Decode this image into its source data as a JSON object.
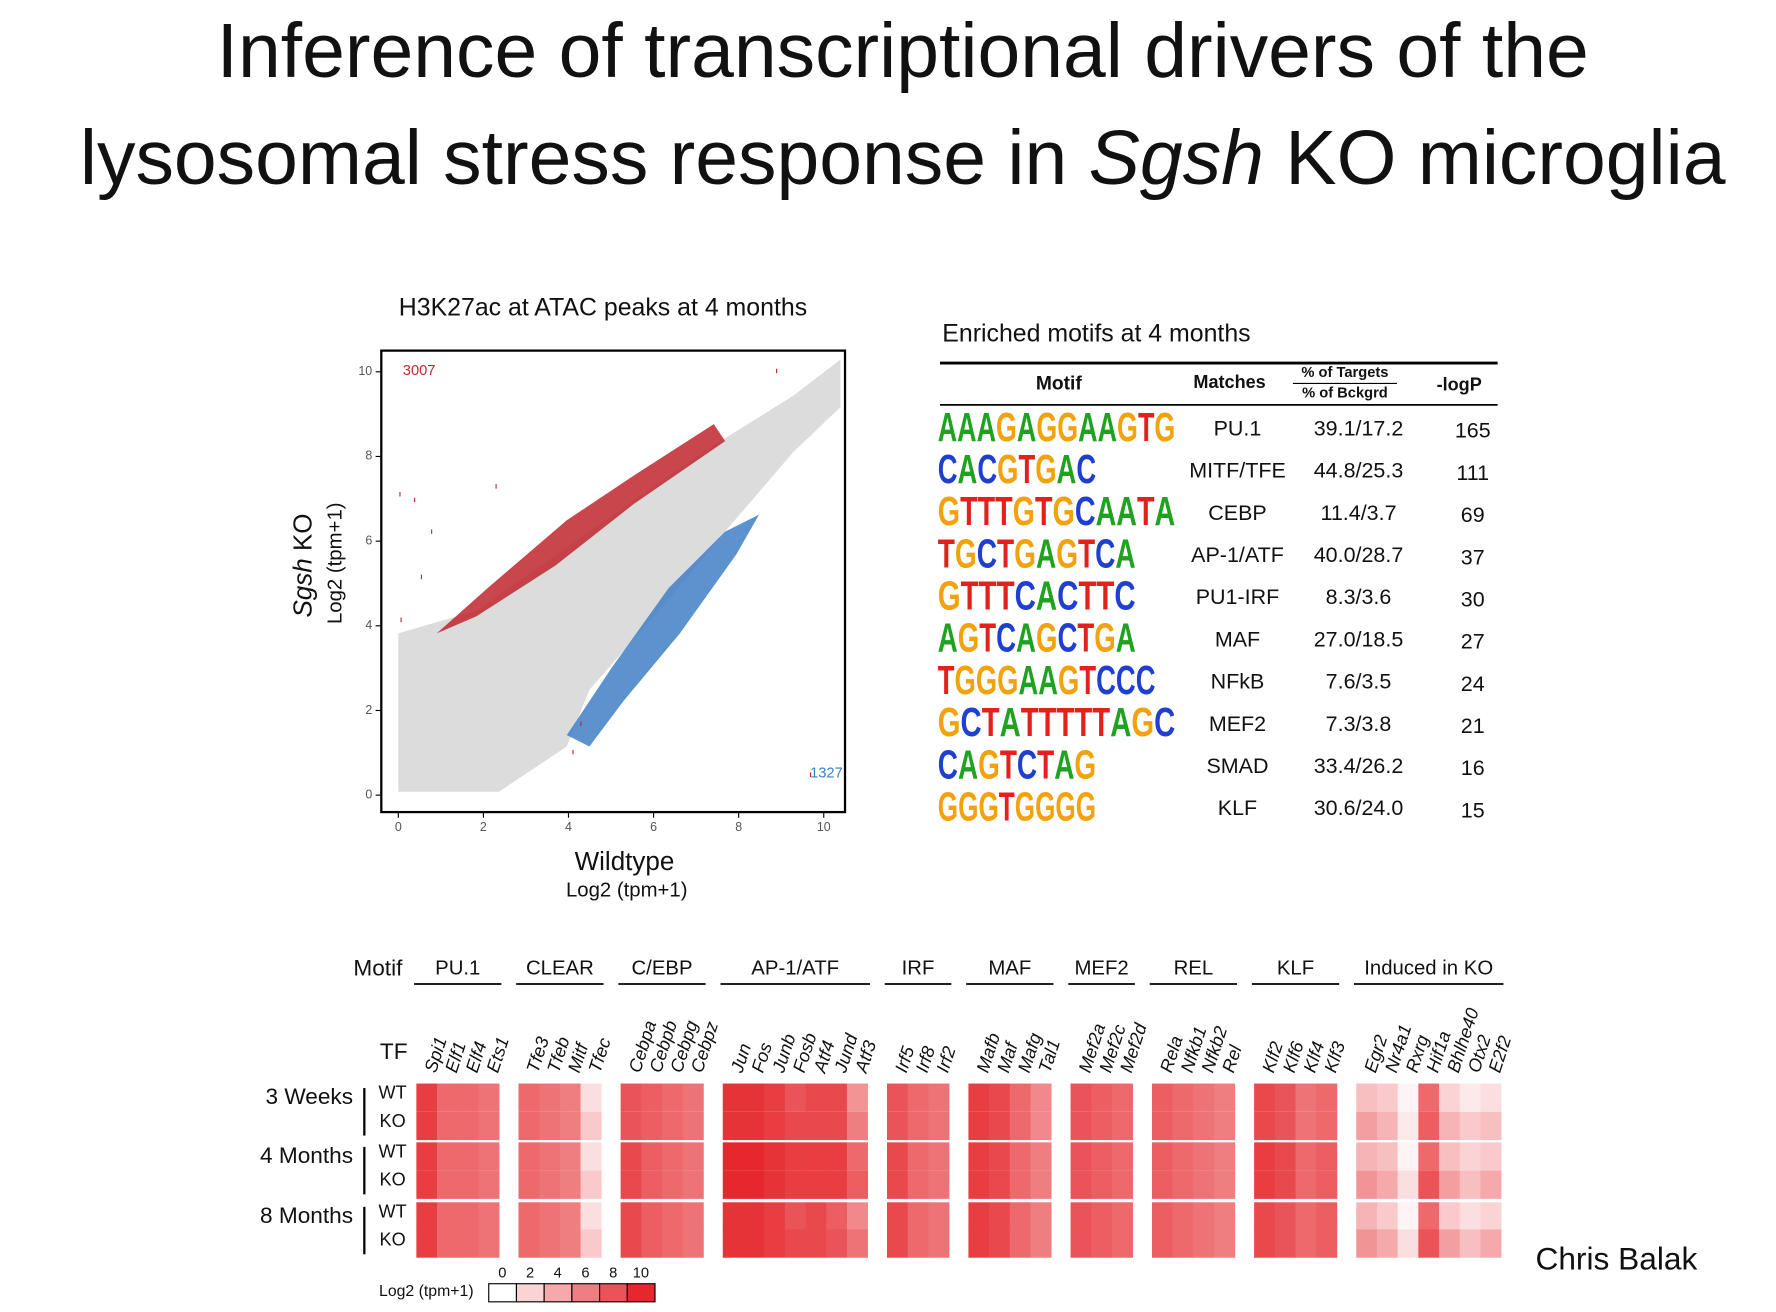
{
  "title": {
    "line1": "Inference of transcriptional drivers of the",
    "line2_pre": "lysosomal stress response in ",
    "line2_italic": "Sgsh",
    "line2_post": " KO microglia"
  },
  "scatter": {
    "title": "H3K27ac at ATAC peaks at 4 months",
    "x_label": "Wildtype",
    "x_unit": "Log2 (tpm+1)",
    "y_label_italic": "Sgsh",
    "y_label_rest": " KO",
    "y_unit": "Log2 (tpm+1)",
    "xlim": [
      -0.4,
      10.5
    ],
    "ylim": [
      -0.4,
      10.5
    ],
    "xticks": [
      0,
      2,
      4,
      6,
      8,
      10
    ],
    "yticks": [
      0,
      2,
      4,
      6,
      8,
      10
    ],
    "up_count": "3007",
    "down_count": "1327"
  },
  "table": {
    "title": "Enriched motifs at 4 months",
    "headers": {
      "motif": "Motif",
      "matches": "Matches",
      "targets": "% of Targets",
      "background": "% of Bckgrd",
      "logp": "-logP"
    },
    "rows": [
      [
        "AAAGAGGAAGTG",
        "PU.1",
        "39.1/17.2",
        "165"
      ],
      [
        "CACGTGAC",
        "MITF/TFE",
        "44.8/25.3",
        "111"
      ],
      [
        "GTTTGTGCAATA",
        "CEBP",
        "11.4/3.7",
        "69"
      ],
      [
        "TGCTGAGTCA",
        "AP-1/ATF",
        "40.0/28.7",
        "37"
      ],
      [
        "GTTTCACTTC",
        "PU1-IRF",
        "8.3/3.6",
        "30"
      ],
      [
        "AGTCAGCTGA",
        "MAF",
        "27.0/18.5",
        "27"
      ],
      [
        "TGGGAAGTCCC",
        "NFkB",
        "7.6/3.5",
        "24"
      ],
      [
        "GCTATTTTTAGC",
        "MEF2",
        "7.3/3.8",
        "21"
      ],
      [
        "CAGTCTAG",
        "SMAD",
        "33.4/26.2",
        "16"
      ],
      [
        "GGGTGGGG",
        "KLF",
        "30.6/24.0",
        "15"
      ]
    ]
  },
  "heatmap": {
    "motif_label": "Motif",
    "tf_label": "TF",
    "groups": [
      {
        "name": "PU.1",
        "tfs": [
          "Spi1",
          "Elf1",
          "Elf4",
          "Ets1"
        ]
      },
      {
        "name": "CLEAR",
        "tfs": [
          "Tfe3",
          "Tfeb",
          "Mitf",
          "Tfec"
        ]
      },
      {
        "name": "C/EBP",
        "tfs": [
          "Cebpa",
          "Cebpb",
          "Cebpg",
          "Cebpz"
        ]
      },
      {
        "name": "AP-1/ATF",
        "tfs": [
          "Jun",
          "Fos",
          "Junb",
          "Fosb",
          "Atf4",
          "Jund",
          "Atf3"
        ]
      },
      {
        "name": "IRF",
        "tfs": [
          "Irf5",
          "Irf8",
          "Irf2"
        ]
      },
      {
        "name": "MAF",
        "tfs": [
          "Mafb",
          "Maf",
          "Mafg",
          "Tal1"
        ]
      },
      {
        "name": "MEF2",
        "tfs": [
          "Mef2a",
          "Mef2c",
          "Mef2d"
        ]
      },
      {
        "name": "REL",
        "tfs": [
          "Rela",
          "Nfkb1",
          "Nfkb2",
          "Rel"
        ]
      },
      {
        "name": "KLF",
        "tfs": [
          "Klf2",
          "Klf6",
          "Klf4",
          "Klf3"
        ]
      },
      {
        "name": "Induced in KO",
        "tfs": [
          "Egr2",
          "Nr4a1",
          "Rxrg",
          "Hif1a",
          "Bhlhe40",
          "Otx2",
          "E2f2"
        ]
      }
    ],
    "timepoints": [
      "3 Weeks",
      "4 Months",
      "8 Months"
    ],
    "genotypes": [
      "WT",
      "KO"
    ],
    "values": [
      [
        9,
        7,
        7,
        6.5,
        7,
        6.5,
        6,
        1.5,
        8,
        7.5,
        7,
        6.5,
        9.5,
        9.5,
        9,
        8,
        8.5,
        8.5,
        5,
        8,
        7,
        6.5,
        9,
        8.5,
        7,
        5.5,
        8,
        7.5,
        7,
        7.5,
        7,
        6.5,
        6,
        8.5,
        8,
        6.5,
        7,
        3,
        2.5,
        0.5,
        7,
        2,
        1,
        1.5
      ],
      [
        9,
        7,
        7,
        6.5,
        7,
        6.5,
        6,
        2.5,
        8,
        7.5,
        7,
        6.5,
        9.5,
        9.5,
        9,
        8.5,
        8.5,
        8.5,
        6,
        8,
        7,
        6.5,
        9,
        8.5,
        7,
        5.5,
        8,
        7.5,
        7,
        7.5,
        7,
        6.5,
        6,
        8.5,
        8,
        6.5,
        7,
        4.5,
        3.5,
        1,
        7.5,
        3.5,
        2.5,
        3
      ],
      [
        9,
        7,
        7,
        6.5,
        7,
        6.5,
        6,
        1.5,
        8.5,
        7.5,
        7,
        6.5,
        10,
        10,
        9.5,
        9,
        9,
        9,
        7,
        8.5,
        7,
        6.5,
        9,
        8.5,
        7,
        6,
        8,
        7.5,
        7,
        7.5,
        7,
        6.5,
        6,
        9,
        8.5,
        7,
        7.5,
        3.5,
        3,
        0.5,
        7,
        3,
        2,
        2.5
      ],
      [
        9,
        7,
        7,
        6.5,
        7,
        6.5,
        6,
        2.5,
        8.5,
        7.5,
        7,
        6.5,
        10,
        10,
        9.5,
        9,
        9,
        9,
        7.5,
        8.5,
        7,
        6.5,
        9,
        8.5,
        7,
        6,
        8,
        7.5,
        7,
        7.5,
        7,
        6.5,
        6,
        9,
        8.5,
        7,
        7.5,
        5,
        4,
        1.5,
        8,
        4.5,
        3,
        4
      ],
      [
        9,
        7,
        7,
        6.5,
        7,
        6.5,
        6,
        1.5,
        8.5,
        7.5,
        7,
        6.5,
        9.5,
        9.5,
        9,
        8,
        8.5,
        7.5,
        5.5,
        8.5,
        7,
        6.5,
        9,
        8.5,
        7,
        6,
        8,
        7.5,
        7,
        7.5,
        7,
        6.5,
        6,
        8.5,
        8,
        7,
        7.5,
        3.5,
        2.5,
        0.5,
        7,
        2.5,
        1.5,
        2
      ],
      [
        9,
        7,
        7,
        6.5,
        7,
        6.5,
        6,
        2.5,
        8.5,
        7.5,
        7,
        6.5,
        9.5,
        9.5,
        9,
        8.5,
        8.5,
        8,
        6.5,
        8.5,
        7,
        6.5,
        9,
        8.5,
        7,
        6,
        8,
        7.5,
        7,
        7.5,
        7,
        6.5,
        6,
        8.5,
        8,
        7,
        7.5,
        5,
        4,
        1.5,
        8,
        4.5,
        3,
        4
      ]
    ],
    "legend_label": "Log2 (tpm+1)",
    "legend_ticks": [
      0,
      2,
      4,
      6,
      8,
      10
    ]
  },
  "author": "Chris Balak"
}
